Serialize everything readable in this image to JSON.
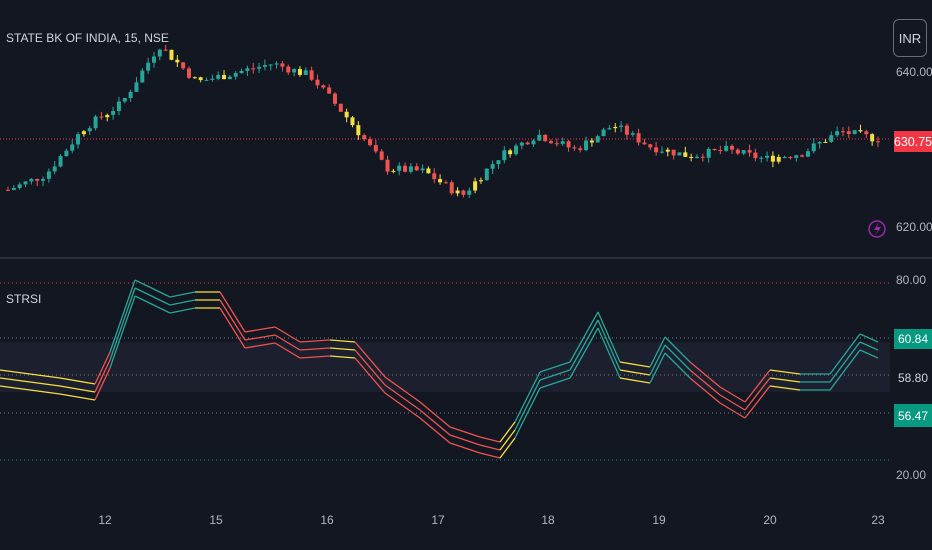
{
  "header": {
    "symbol": "STATE BK OF INDIA, 15, NSE",
    "currency_button": "INR",
    "indicator": "STRSI"
  },
  "price_axis": {
    "top_label": "640.00",
    "bottom_label": "620.00",
    "current_price": "630.75"
  },
  "indicator_axis": {
    "top_label": "80.00",
    "bottom_label": "20.00",
    "values": [
      "60.84",
      "58.80",
      "56.47"
    ]
  },
  "time_axis": [
    "12",
    "15",
    "16",
    "17",
    "18",
    "19",
    "20",
    "23"
  ],
  "colors": {
    "background": "#131722",
    "up": "#26a69a",
    "down": "#ef5350",
    "neutral": "#f5e042",
    "price_line": "#f23645",
    "lightning": "#9c27b0"
  },
  "icons": [
    "lightning-icon"
  ],
  "chart_data": {
    "type": "candlestick",
    "panes": [
      {
        "name": "price",
        "ylim": [
          616,
          646
        ],
        "current_price": 630.75,
        "close_path": [
          [
            "12",
            622.5
          ],
          [
            "12",
            625.0
          ],
          [
            "12",
            632.5
          ],
          [
            "15",
            636.5
          ],
          [
            "15",
            646.0
          ],
          [
            "15",
            640.0
          ],
          [
            "16",
            641.5
          ],
          [
            "16",
            643.0
          ],
          [
            "16",
            641.0
          ],
          [
            "17",
            634.0
          ],
          [
            "17",
            626.0
          ],
          [
            "17",
            625.5
          ],
          [
            "18",
            621.5
          ],
          [
            "18",
            628.0
          ],
          [
            "18",
            631.5
          ],
          [
            "19",
            629.0
          ],
          [
            "19",
            633.0
          ],
          [
            "19",
            629.5
          ],
          [
            "20",
            628.0
          ],
          [
            "20",
            629.0
          ],
          [
            "20",
            627.5
          ],
          [
            "23",
            628.5
          ],
          [
            "23",
            632.0
          ],
          [
            "23",
            630.75
          ]
        ]
      },
      {
        "name": "STRSI",
        "ylim": [
          14,
          86
        ],
        "levels": [
          80,
          60.84,
          58.8,
          56.47,
          20
        ],
        "series_values_at_right": [
          60.84,
          58.8,
          56.47
        ]
      }
    ]
  }
}
